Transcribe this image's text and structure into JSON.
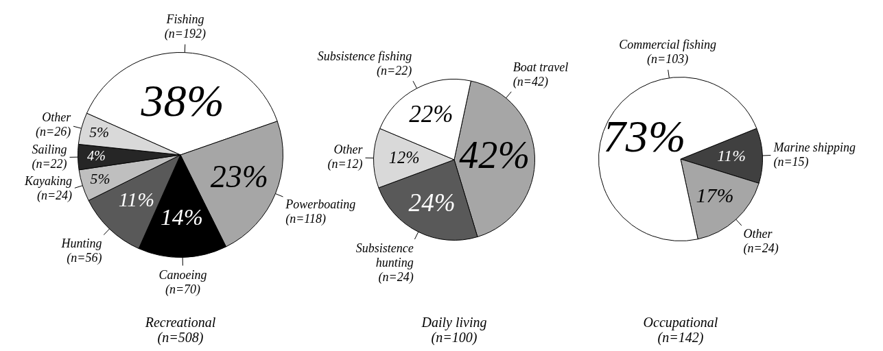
{
  "chart_data": [
    {
      "type": "pie",
      "title": "Recreational\n(n=508)",
      "categories": [
        "Fishing\n(n=192)",
        "Powerboating\n(n=118)",
        "Canoeing\n(n=70)",
        "Hunting\n(n=56)",
        "Kayaking\n(n=24)",
        "Sailing\n(n=22)",
        "Other\n(n=26)"
      ],
      "values": [
        38,
        23,
        14,
        11,
        5,
        4,
        5
      ],
      "colors": [
        "#ffffff",
        "#a6a6a6",
        "#000000",
        "#595959",
        "#bfbfbf",
        "#262626",
        "#d9d9d9"
      ],
      "value_labels": [
        "38%",
        "23%",
        "14%",
        "11%",
        "5%",
        "4%",
        "5%"
      ]
    },
    {
      "type": "pie",
      "title": "Daily living\n(n=100)",
      "categories": [
        "Boat travel\n(n=42)",
        "Subsistence\nhunting\n(n=24)",
        "Other\n(n=12)",
        "Subsistence fishing\n(n=22)"
      ],
      "values": [
        42,
        24,
        12,
        22.0
      ],
      "colors": [
        "#a6a6a6",
        "#595959",
        "#d9d9d9",
        "#ffffff"
      ],
      "value_labels": [
        "42%",
        "24%",
        "12%",
        "22%"
      ]
    },
    {
      "type": "pie",
      "title": "Occupational\n(n=142)",
      "categories": [
        "Marine shipping\n(n=15)",
        "Other\n(n=24)",
        "Commercial fishing\n(n=103)"
      ],
      "values": [
        11,
        17,
        73
      ],
      "colors": [
        "#404040",
        "#a6a6a6",
        "#ffffff"
      ],
      "value_labels": [
        "11%",
        "17%",
        "73%"
      ]
    }
  ]
}
